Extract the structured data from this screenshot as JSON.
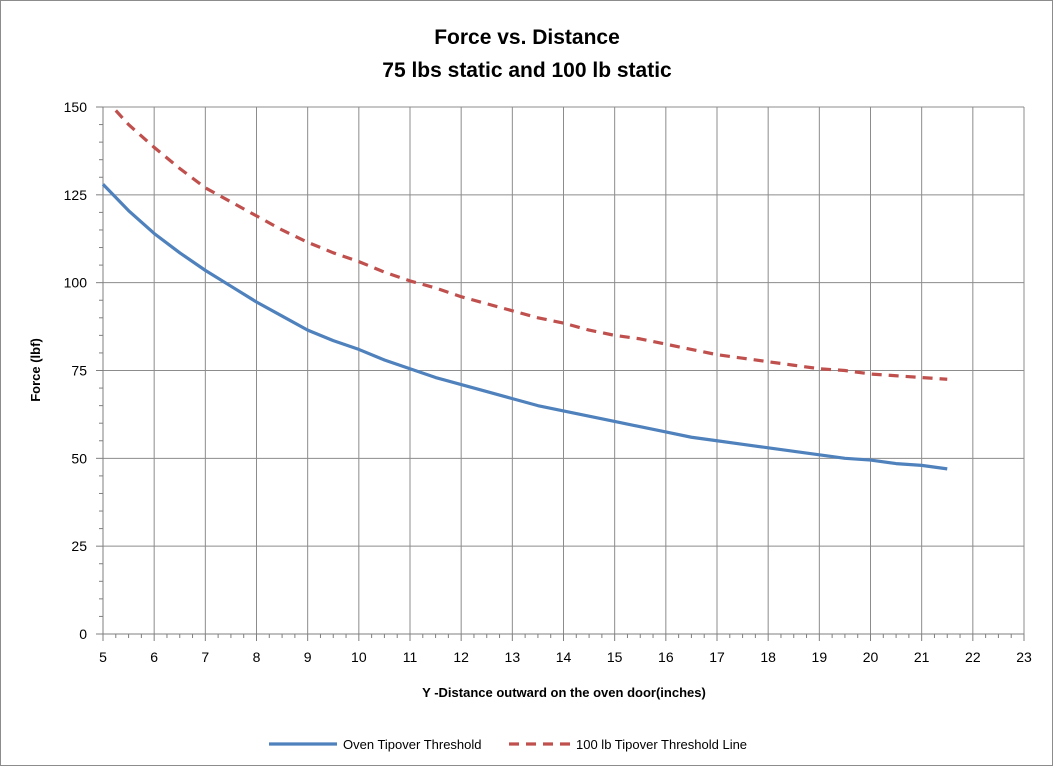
{
  "chart_data": {
    "type": "line",
    "title": "Force vs. Distance",
    "subtitle": "75 lbs static and 100 lb static",
    "xlabel": "Y -Distance outward on the oven door(inches)",
    "ylabel": "Force (lbf)",
    "xlim": [
      5,
      23
    ],
    "ylim": [
      0,
      150
    ],
    "x_ticks": [
      "5",
      "6",
      "7",
      "8",
      "9",
      "10",
      "11",
      "12",
      "13",
      "14",
      "15",
      "16",
      "17",
      "18",
      "19",
      "20",
      "21",
      "22",
      "23"
    ],
    "y_ticks": [
      "0",
      "25",
      "50",
      "75",
      "100",
      "125",
      "150"
    ],
    "grid": true,
    "legend_position": "bottom",
    "series": [
      {
        "name": "Oven Tipover Threshold",
        "color": "#4f81bd",
        "style": "solid",
        "x": [
          5,
          5.5,
          6,
          6.5,
          7,
          7.5,
          8,
          8.5,
          9,
          9.5,
          10,
          10.5,
          11,
          11.5,
          12,
          12.5,
          13,
          13.5,
          14,
          14.5,
          15,
          15.5,
          16,
          16.5,
          17,
          17.5,
          18,
          18.5,
          19,
          19.5,
          20,
          20.5,
          21,
          21.5
        ],
        "y": [
          128,
          120.5,
          114,
          108.5,
          103.5,
          99,
          94.5,
          90.5,
          86.5,
          83.5,
          81,
          78,
          75.5,
          73,
          71,
          69,
          67,
          65,
          63.5,
          62,
          60.5,
          59,
          57.5,
          56,
          55,
          54,
          53,
          52,
          51,
          50,
          49.5,
          48.5,
          48,
          47
        ]
      },
      {
        "name": "100 lb Tipover Threshold Line",
        "color": "#c0504d",
        "style": "dashed",
        "x": [
          5.25,
          5.5,
          6,
          6.5,
          7,
          7.5,
          8,
          8.5,
          9,
          9.5,
          10,
          10.5,
          11,
          11.5,
          12,
          12.5,
          13,
          13.5,
          14,
          14.5,
          15,
          15.5,
          16,
          16.5,
          17,
          17.5,
          18,
          18.5,
          19,
          19.5,
          20,
          20.5,
          21,
          21.5
        ],
        "y": [
          149,
          145,
          138.5,
          132.5,
          127,
          123,
          119,
          115,
          111.5,
          108.5,
          106,
          103,
          100.5,
          98.5,
          96,
          94,
          92,
          90,
          88.5,
          86.5,
          85,
          84,
          82.5,
          81,
          79.5,
          78.5,
          77.5,
          76.5,
          75.5,
          75,
          74,
          73.5,
          73,
          72.5
        ]
      }
    ]
  }
}
